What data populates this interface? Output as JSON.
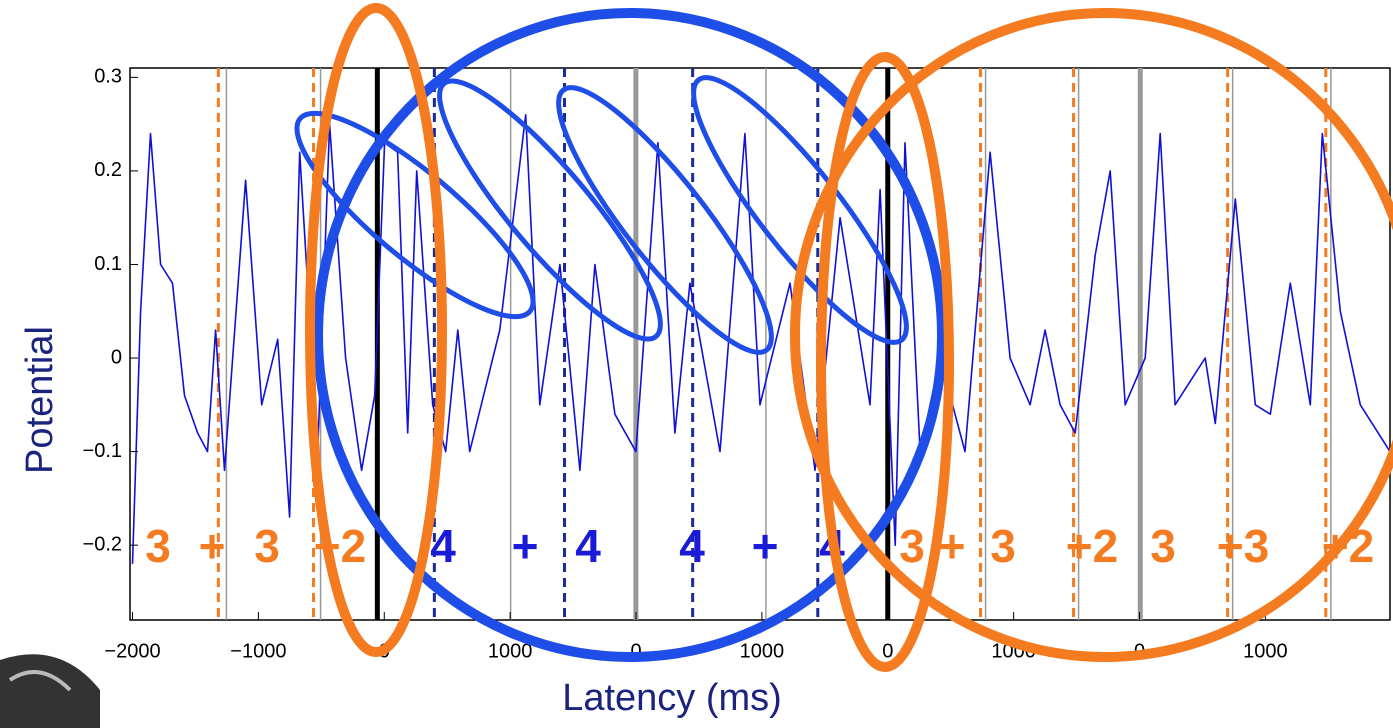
{
  "chart_data": {
    "type": "line",
    "y_label": "Potential",
    "x_label": "Latency (ms)",
    "xlim": [
      -2020,
      7990
    ],
    "ylim": [
      -0.28,
      0.31
    ],
    "xticks": [
      {
        "value": -2000,
        "label": "−2000"
      },
      {
        "value": -1000,
        "label": "−1000"
      },
      {
        "value": 0,
        "label": "0"
      },
      {
        "value": 1000,
        "label": "1000"
      },
      {
        "value": 2000,
        "label": "0"
      },
      {
        "value": 3000,
        "label": "1000"
      },
      {
        "value": 4000,
        "label": "0"
      },
      {
        "value": 5000,
        "label": "1000"
      },
      {
        "value": 6000,
        "label": "0"
      },
      {
        "value": 7000,
        "label": "1000"
      }
    ],
    "yticks": [
      {
        "value": -0.2,
        "label": "−0.2"
      },
      {
        "value": -0.1,
        "label": "−0.1"
      },
      0,
      0.1,
      0.2,
      0.3
    ],
    "series": [
      {
        "color": "#1010d8",
        "x": [
          -2000,
          -1936,
          -1857,
          -1777,
          -1682,
          -1587,
          -1483,
          -1404,
          -1340,
          -1269,
          -1102,
          -974,
          -847,
          -752,
          -672,
          -529,
          -434,
          -307,
          -180,
          -76,
          3,
          106,
          186,
          258,
          385,
          488,
          584,
          679,
          918,
          1124,
          1236,
          1395,
          1554,
          1673,
          1832,
          1999,
          2174,
          2309,
          2428,
          2667,
          2865,
          2985,
          3223,
          3422,
          3621,
          3859,
          3939,
          4059,
          4137,
          4257,
          4416,
          4614,
          4813,
          4972,
          5131,
          5250,
          5369,
          5489,
          5648,
          5767,
          5886,
          6045,
          6164,
          6283,
          6522,
          6602,
          6761,
          6920,
          7039,
          7198,
          7357,
          7452,
          7595,
          7754,
          7990
        ],
        "values": [
          -0.22,
          0.05,
          0.24,
          0.1,
          0.08,
          -0.04,
          -0.08,
          -0.1,
          0.03,
          -0.12,
          0.19,
          -0.05,
          0.02,
          -0.17,
          0.22,
          -0.1,
          0.25,
          0.0,
          -0.12,
          -0.04,
          0.23,
          0.22,
          -0.08,
          0.2,
          -0.05,
          -0.1,
          0.03,
          -0.1,
          0.03,
          0.26,
          -0.05,
          0.1,
          -0.12,
          0.1,
          -0.06,
          -0.1,
          0.23,
          -0.08,
          0.08,
          -0.1,
          0.24,
          -0.05,
          0.08,
          -0.12,
          0.15,
          -0.05,
          0.18,
          -0.2,
          0.23,
          -0.1,
          0.0,
          -0.1,
          0.22,
          0.0,
          -0.05,
          0.03,
          -0.05,
          -0.08,
          0.11,
          0.2,
          -0.05,
          0.0,
          0.24,
          -0.05,
          0.0,
          -0.07,
          0.17,
          -0.05,
          -0.06,
          0.08,
          -0.05,
          0.24,
          0.05,
          -0.05,
          -0.1
        ]
      }
    ],
    "event_lines": [
      {
        "color": "#f47b20",
        "style": "dashed",
        "width": 3,
        "x": [
          -1318,
          -562,
          4737,
          5476,
          6700,
          7480
        ]
      },
      {
        "color": "#999999",
        "style": "solid",
        "width": 1.5,
        "x": [
          -1254,
          -506,
          1004,
          3032,
          4777,
          5516,
          6740,
          7520
        ]
      },
      {
        "color": "#000000",
        "style": "solid",
        "width": 5,
        "x": [
          -55,
          4000
        ]
      },
      {
        "color": "#999999",
        "style": "solid",
        "width": 5,
        "x": [
          1999,
          6006
        ]
      },
      {
        "color": "#1a2a9a",
        "style": "dashed",
        "width": 3,
        "x": [
          398,
          1432,
          2450,
          3444
        ]
      }
    ],
    "annotations": [
      {
        "text": "3",
        "color": "#f47b20"
      },
      {
        "text": "+",
        "color": "#f47b20"
      },
      {
        "text": "3",
        "color": "#f47b20"
      },
      {
        "text": "+2",
        "color": "#f47b20"
      },
      {
        "text": "4",
        "color": "#1a1ad8"
      },
      {
        "text": "+",
        "color": "#1a1ad8"
      },
      {
        "text": "4",
        "color": "#1a1ad8"
      },
      {
        "text": "4",
        "color": "#1a1ad8"
      },
      {
        "text": "+",
        "color": "#1a1ad8"
      },
      {
        "text": "4",
        "color": "#1a1ad8"
      },
      {
        "text": "3",
        "color": "#f47b20"
      },
      {
        "text": "+",
        "color": "#f47b20"
      },
      {
        "text": "3",
        "color": "#f47b20"
      },
      {
        "text": "+2",
        "color": "#f47b20"
      },
      {
        "text": "3",
        "color": "#f47b20"
      },
      {
        "text": "+3",
        "color": "#f47b20"
      },
      {
        "text": "+2",
        "color": "#f47b20"
      }
    ]
  }
}
